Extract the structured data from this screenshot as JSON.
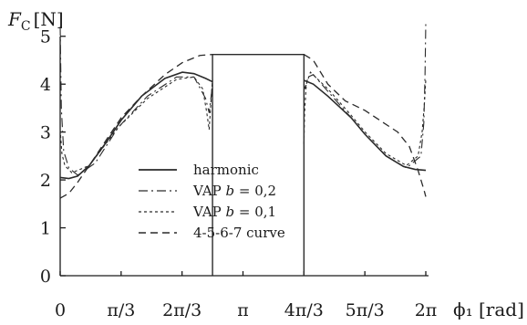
{
  "chart_data": {
    "type": "line",
    "xlabel": "ϕ₁ [rad]",
    "ylabel_main": "F",
    "ylabel_sub": "C",
    "ylabel_unit": "[N]",
    "xlim": [
      0,
      6.2832
    ],
    "ylim": [
      0,
      5.3
    ],
    "x_ticks": [
      {
        "value": 0,
        "label": "0"
      },
      {
        "value": 1.0472,
        "label": "π/3"
      },
      {
        "value": 2.0944,
        "label": "2π/3"
      },
      {
        "value": 3.1416,
        "label": "π"
      },
      {
        "value": 4.1888,
        "label": "4π/3"
      },
      {
        "value": 5.236,
        "label": "5π/3"
      },
      {
        "value": 6.2832,
        "label": "2π"
      }
    ],
    "y_ticks": [
      0,
      1,
      2,
      3,
      4,
      5
    ],
    "plateau": {
      "x_start": 2.618,
      "x_end": 4.189,
      "y": 4.62
    },
    "legend_position": "center-left",
    "series": [
      {
        "name": "harmonic",
        "style": "solid",
        "x": [
          0,
          0.15,
          0.3,
          0.5,
          0.8,
          1.05,
          1.4,
          1.8,
          2.1,
          2.3,
          2.5,
          2.618,
          4.189,
          4.35,
          4.6,
          5.0,
          5.24,
          5.6,
          5.9,
          6.1,
          6.2832
        ],
        "y": [
          2.05,
          2.03,
          2.08,
          2.3,
          2.8,
          3.25,
          3.75,
          4.12,
          4.25,
          4.22,
          4.12,
          4.05,
          4.08,
          4.0,
          3.75,
          3.3,
          2.95,
          2.5,
          2.28,
          2.22,
          2.2
        ]
      },
      {
        "name": "VAP b = 0,2",
        "style": "dashdot",
        "x": [
          0,
          0.02,
          0.06,
          0.15,
          0.3,
          0.6,
          1.0,
          1.5,
          2.0,
          2.3,
          2.5,
          2.56,
          2.6,
          2.618,
          4.189,
          4.21,
          4.26,
          4.35,
          4.6,
          5.0,
          5.24,
          5.6,
          5.95,
          6.2,
          6.25,
          6.27,
          6.2832
        ],
        "y": [
          5.2,
          3.5,
          2.6,
          2.25,
          2.1,
          2.35,
          3.1,
          3.75,
          4.15,
          4.15,
          3.7,
          3.4,
          3.8,
          4.05,
          4.0,
          3.9,
          4.15,
          4.2,
          3.85,
          3.3,
          2.95,
          2.5,
          2.25,
          2.5,
          3.2,
          4.2,
          5.3
        ]
      },
      {
        "name": "VAP b = 0,1",
        "style": "dotted",
        "x": [
          0,
          0.03,
          0.08,
          0.2,
          0.5,
          1.0,
          1.5,
          2.0,
          2.3,
          2.45,
          2.52,
          2.56,
          2.6,
          2.618,
          4.189,
          4.2,
          4.23,
          4.3,
          4.6,
          5.0,
          5.24,
          5.6,
          5.95,
          6.15,
          6.22,
          6.26,
          6.2832
        ],
        "y": [
          3.05,
          2.55,
          2.3,
          2.15,
          2.3,
          3.1,
          3.7,
          4.1,
          4.15,
          3.9,
          3.4,
          3.05,
          3.8,
          4.1,
          2.75,
          3.4,
          4.0,
          4.25,
          3.9,
          3.35,
          3.0,
          2.55,
          2.3,
          2.5,
          3.0,
          3.6,
          4.1
        ]
      },
      {
        "name": "4-5-6-7 curve",
        "style": "dashed",
        "x": [
          0,
          0.15,
          0.3,
          0.5,
          0.8,
          1.05,
          1.4,
          1.8,
          2.1,
          2.4,
          2.618,
          4.189,
          4.35,
          4.6,
          4.9,
          5.24,
          5.55,
          5.8,
          6.0,
          6.15,
          6.25,
          6.2832
        ],
        "y": [
          1.62,
          1.72,
          1.95,
          2.3,
          2.85,
          3.3,
          3.75,
          4.2,
          4.45,
          4.6,
          4.62,
          4.62,
          4.5,
          4.0,
          3.65,
          3.45,
          3.2,
          3.0,
          2.7,
          2.2,
          1.8,
          1.65
        ]
      }
    ]
  }
}
